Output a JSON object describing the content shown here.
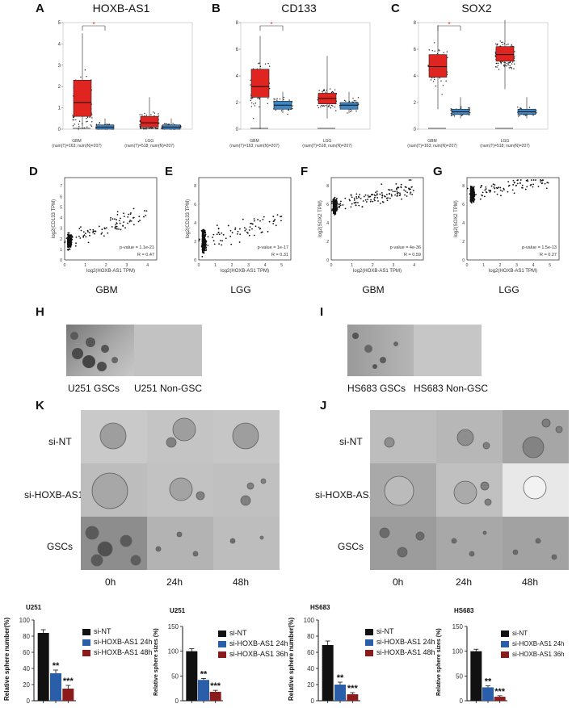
{
  "panel_labels": {
    "A": "A",
    "B": "B",
    "C": "C",
    "D": "D",
    "E": "E",
    "F": "F",
    "G": "G",
    "H": "H",
    "I": "I",
    "K": "K",
    "J": "J"
  },
  "boxplots": [
    {
      "title": "HOXB-AS1",
      "yticks": [
        "0",
        "1",
        "2",
        "3",
        "4",
        "5"
      ],
      "star": "*",
      "groups": [
        {
          "name": "GBM",
          "caption": "(num(T)=163; num(N)=207)"
        },
        {
          "name": "LGG",
          "caption": "(num(T)=518; num(N)=207)"
        }
      ]
    },
    {
      "title": "CD133",
      "yticks": [
        "0",
        "2",
        "4",
        "6",
        "8"
      ],
      "star": "*",
      "groups": [
        {
          "name": "GBM",
          "caption": "(num(T)=163; num(N)=207)"
        },
        {
          "name": "LGG",
          "caption": "(num(T)=518; num(N)=207)"
        }
      ]
    },
    {
      "title": "SOX2",
      "yticks": [
        "0",
        "2",
        "4",
        "6",
        "8"
      ],
      "star": "*",
      "groups": [
        {
          "name": "GBM",
          "caption": "(num(T)=163; num(N)=207)"
        },
        {
          "name": "LGG",
          "caption": "(num(T)=518; num(N)=207)"
        }
      ]
    }
  ],
  "scatters": [
    {
      "ylabel": "log2(CD133 TPM)",
      "xlabel": "log2(HOXB-AS1 TPM)",
      "pval": "p-value = 1.1e-21",
      "r": "R = 0.47",
      "title": "GBM",
      "xticks": [
        "0",
        "1",
        "2",
        "3",
        "4"
      ],
      "yticks": [
        "0",
        "1",
        "2",
        "3",
        "4",
        "5",
        "6",
        "7"
      ]
    },
    {
      "ylabel": "log2(CD133 TPM)",
      "xlabel": "log2(HOXB-AS1 TPM)",
      "pval": "p-value = 1e-17",
      "r": "R = 0.31",
      "title": "LGG",
      "xticks": [
        "0",
        "1",
        "2",
        "3",
        "4",
        "5"
      ],
      "yticks": [
        "0",
        "2",
        "4",
        "6",
        "8"
      ]
    },
    {
      "ylabel": "log2(SOX2 TPM)",
      "xlabel": "log2(HOXB-AS1 TPM)",
      "pval": "p-value = 4e-36",
      "r": "R = 0.59",
      "title": "GBM",
      "xticks": [
        "0",
        "1",
        "2",
        "3",
        "4"
      ],
      "yticks": [
        "0",
        "2",
        "4",
        "6",
        "8"
      ]
    },
    {
      "ylabel": "log2(SOX2 TPM)",
      "xlabel": "log2(HOXB-AS1 TPM)",
      "pval": "p-value = 1.5e-13",
      "r": "R = 0.27",
      "title": "LGG",
      "xticks": [
        "0",
        "1",
        "2",
        "3",
        "4",
        "5"
      ],
      "yticks": [
        "0",
        "2",
        "4",
        "6",
        "8"
      ]
    }
  ],
  "micro": {
    "H": {
      "left": "U251 GSCs",
      "right": "U251 Non-GSC"
    },
    "I": {
      "left": "HS683 GSCs",
      "right": "HS683 Non-GSC"
    },
    "rows": [
      "si-NT",
      "si-HOXB-AS1",
      "GSCs"
    ],
    "cols": [
      "0h",
      "24h",
      "48h"
    ]
  },
  "colors": {
    "black": "#111111",
    "blue": "#2a5ea8",
    "red": "#8b1a1a",
    "boxred": "#e0241f",
    "boxblue": "#3d86c6"
  },
  "chart_data": [
    {
      "type": "bar",
      "title": "U251",
      "ylabel": "Relative sphere number(%)",
      "categories": [
        "si-NT",
        "si-HOXB-AS1 24h",
        "si-HOXB-AS1 48h"
      ],
      "values": [
        84,
        34,
        15
      ],
      "errors": [
        4,
        4,
        4
      ],
      "sig": [
        "",
        "**",
        "***"
      ],
      "ylim": [
        0,
        100
      ],
      "yticks": [
        "0",
        "20",
        "40",
        "60",
        "80",
        "100"
      ]
    },
    {
      "type": "bar",
      "title": "U251",
      "ylabel": "Relative sphere sizes (%)",
      "categories": [
        "si-NT",
        "si-HOXB-AS1 24h",
        "si-HOXB-AS1 36h"
      ],
      "values": [
        100,
        42,
        18
      ],
      "errors": [
        5,
        3,
        3
      ],
      "sig": [
        "",
        "**",
        "***"
      ],
      "ylim": [
        0,
        150
      ],
      "yticks": [
        "0",
        "50",
        "100",
        "150"
      ]
    },
    {
      "type": "bar",
      "title": "HS683",
      "ylabel": "Relative sphere number(%)",
      "categories": [
        "si-NT",
        "si-HOXB-AS1 24h",
        "si-HOXB-AS1 48h"
      ],
      "values": [
        69,
        20,
        8
      ],
      "errors": [
        5,
        3,
        2
      ],
      "sig": [
        "",
        "**",
        "***"
      ],
      "ylim": [
        0,
        100
      ],
      "yticks": [
        "0",
        "20",
        "40",
        "60",
        "80",
        "100"
      ]
    },
    {
      "type": "bar",
      "title": "HS683",
      "ylabel": "Relative sphere sizes (%)",
      "categories": [
        "si-NT",
        "si-HOXB-AS1 24h",
        "si-HOXB-AS1 36h"
      ],
      "values": [
        100,
        27,
        8
      ],
      "errors": [
        4,
        3,
        2
      ],
      "sig": [
        "",
        "**",
        "***"
      ],
      "ylim": [
        0,
        150
      ],
      "yticks": [
        "0",
        "50",
        "100",
        "150"
      ]
    }
  ]
}
